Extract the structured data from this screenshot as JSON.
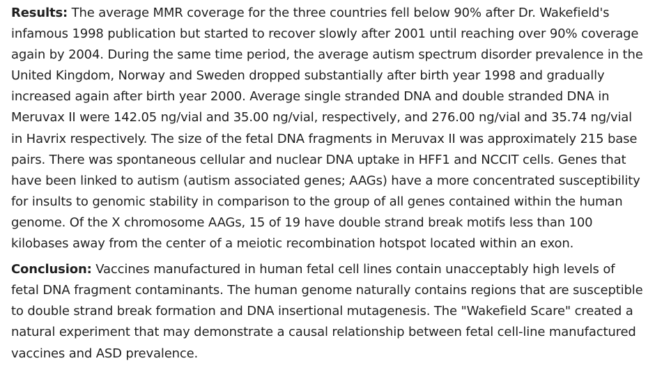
{
  "results": {
    "label": "Results:",
    "text": " The average MMR coverage for the three countries fell below 90% after Dr. Wakefield's infamous 1998 publication but started to recover slowly after 2001 until reaching over 90% coverage again by 2004. During the same time period, the average autism spectrum disorder prevalence in the United Kingdom, Norway and Sweden dropped substantially after birth year 1998 and gradually increased again after birth year 2000. Average single stranded DNA and double stranded DNA in Meruvax II were 142.05 ng/vial and 35.00 ng/vial, respectively, and 276.00 ng/vial and 35.74 ng/vial in Havrix respectively. The size of the fetal DNA fragments in Meruvax II was approximately 215 base pairs. There was spontaneous cellular and nuclear DNA uptake in HFF1 and NCCIT cells. Genes that have been linked to autism (autism associated genes; AAGs) have a more concentrated susceptibility for insults to genomic stability in comparison to the group of all genes contained within the human genome. Of the X chromosome AAGs, 15 of 19 have double strand break motifs less than 100 kilobases away from the center of a meiotic recombination hotspot located within an exon."
  },
  "conclusion": {
    "label": "Conclusion:",
    "text": " Vaccines manufactured in human fetal cell lines contain unacceptably high levels of fetal DNA fragment contaminants. The human genome naturally contains regions that are susceptible to double strand break formation and DNA insertional mutagenesis. The \"Wakefield Scare\" created a natural experiment that may demonstrate a causal relationship between fetal cell-line manufactured vaccines and ASD prevalence."
  }
}
